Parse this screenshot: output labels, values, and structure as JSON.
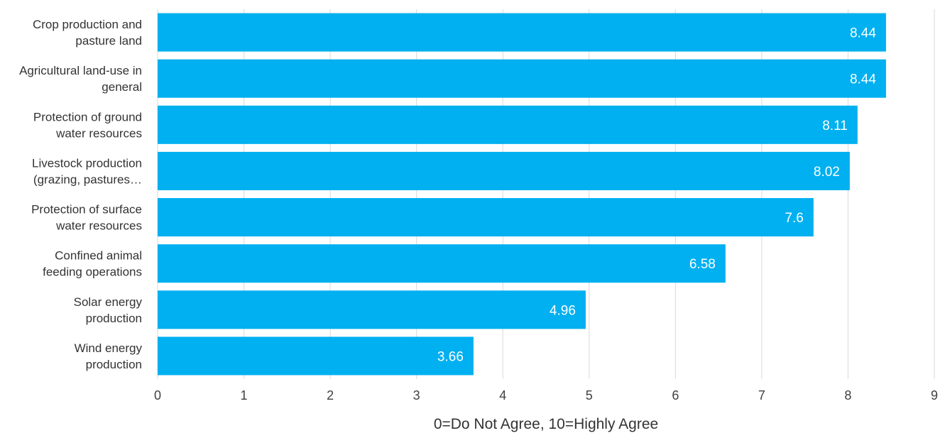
{
  "chart_data": {
    "type": "bar",
    "orientation": "horizontal",
    "categories": [
      [
        "Crop production and",
        "pasture land"
      ],
      [
        "Agricultural land-use in",
        "general"
      ],
      [
        "Protection of ground",
        "water resources"
      ],
      [
        "Livestock production",
        "(grazing, pastures…"
      ],
      [
        "Protection of surface",
        "water resources"
      ],
      [
        "Confined animal",
        "feeding operations"
      ],
      [
        "Solar energy",
        "production"
      ],
      [
        "Wind energy",
        "production"
      ]
    ],
    "values": [
      8.44,
      8.44,
      8.11,
      8.02,
      7.6,
      6.58,
      4.96,
      3.66
    ],
    "data_labels": [
      "8.44",
      "8.44",
      "8.11",
      "8.02",
      "7.6",
      "6.58",
      "4.96",
      "3.66"
    ],
    "xlim": [
      0,
      9
    ],
    "xticks": [
      "0",
      "1",
      "2",
      "3",
      "4",
      "5",
      "6",
      "7",
      "8",
      "9"
    ],
    "xlabel": "0=Do Not Agree, 10=Highly Agree",
    "ylabel": "",
    "title": "",
    "grid": true,
    "bar_color": "#00b0f0",
    "label_color": "#ffffff"
  }
}
